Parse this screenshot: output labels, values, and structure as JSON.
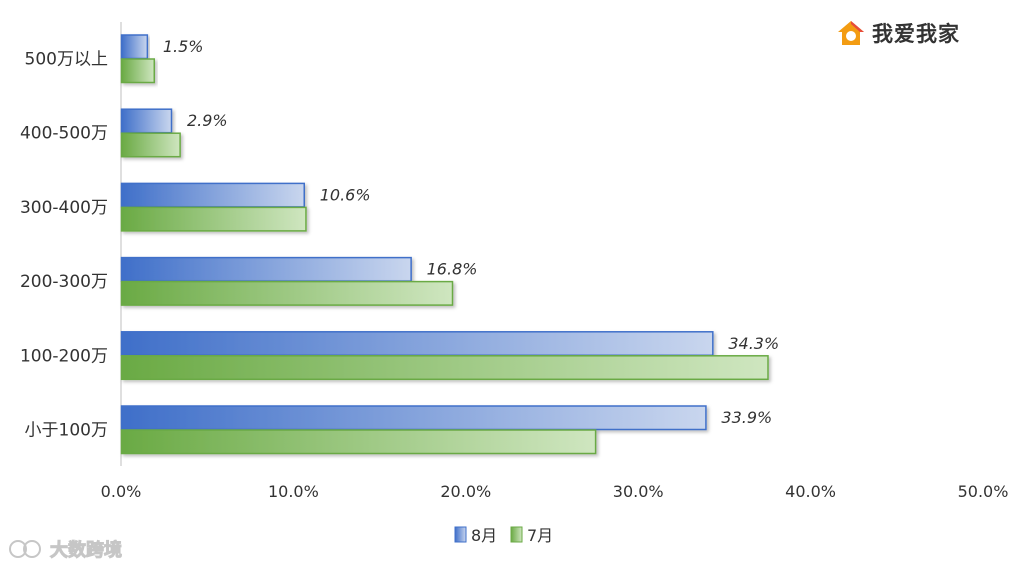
{
  "brand": {
    "name": "我爱我家",
    "logo_icon": "house-logo-icon"
  },
  "watermark": {
    "text": "大数跨境"
  },
  "chart_data": {
    "type": "bar",
    "orientation": "horizontal",
    "categories": [
      "500万以上",
      "400-500万",
      "300-400万",
      "200-300万",
      "100-200万",
      "小于100万"
    ],
    "series": [
      {
        "name": "8月",
        "values": [
          1.5,
          2.9,
          10.6,
          16.8,
          34.3,
          33.9
        ],
        "color": "#4472C4",
        "labels": [
          "1.5%",
          "2.9%",
          "10.6%",
          "16.8%",
          "34.3%",
          "33.9%"
        ]
      },
      {
        "name": "7月",
        "values": [
          1.9,
          3.4,
          10.7,
          19.2,
          37.5,
          27.5
        ],
        "color": "#70AD47"
      }
    ],
    "xlim": [
      0,
      50
    ],
    "x_ticks": [
      "0.0%",
      "10.0%",
      "20.0%",
      "30.0%",
      "40.0%",
      "50.0%"
    ],
    "legend": "bottom",
    "grid": false
  }
}
